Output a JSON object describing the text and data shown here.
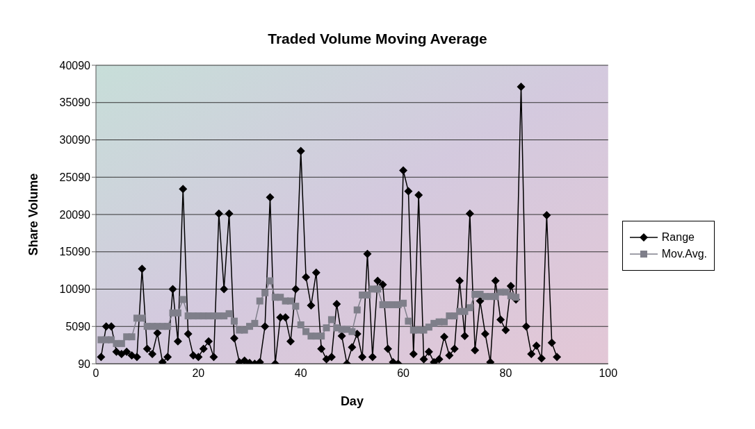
{
  "chart_data": {
    "type": "line",
    "title": "Traded Volume Moving Average",
    "xlabel": "Day",
    "ylabel": "Share Volume",
    "x": [
      1,
      2,
      3,
      4,
      5,
      6,
      7,
      8,
      9,
      10,
      11,
      12,
      13,
      14,
      15,
      16,
      17,
      18,
      19,
      20,
      21,
      22,
      23,
      24,
      25,
      26,
      27,
      28,
      29,
      30,
      31,
      32,
      33,
      34,
      35,
      36,
      37,
      38,
      39,
      40,
      41,
      42,
      43,
      44,
      45,
      46,
      47,
      48,
      49,
      50,
      51,
      52,
      53,
      54,
      55,
      56,
      57,
      58,
      59,
      60,
      61,
      62,
      63,
      64,
      65,
      66,
      67,
      68,
      69,
      70,
      71,
      72,
      73,
      74,
      75,
      76,
      77,
      78,
      79,
      80,
      81,
      82,
      83,
      84,
      85,
      86,
      87,
      88,
      89,
      90
    ],
    "series": [
      {
        "name": "Range",
        "color": "#000000",
        "marker": "diamond",
        "values": [
          1000,
          5100,
          5100,
          1700,
          1400,
          1700,
          1200,
          1000,
          12800,
          2100,
          1400,
          4200,
          300,
          1000,
          10100,
          3100,
          23500,
          4100,
          1200,
          1000,
          2100,
          3100,
          1000,
          20200,
          10100,
          20200,
          3500,
          300,
          500,
          200,
          90,
          300,
          5100,
          22400,
          90,
          6300,
          6300,
          3100,
          10100,
          28600,
          11700,
          7900,
          12300,
          2100,
          700,
          1000,
          8100,
          3800,
          90,
          2300,
          4100,
          1000,
          14800,
          1000,
          11200,
          10700,
          2100,
          300,
          90,
          26000,
          23200,
          1400,
          22700,
          700,
          1700,
          300,
          700,
          3700,
          1200,
          2100,
          11200,
          3800,
          20200,
          1900,
          8500,
          4100,
          300,
          11200,
          6000,
          4600,
          10500,
          8700,
          37200,
          5100,
          1400,
          2500,
          800,
          20000,
          2900,
          1000
        ]
      },
      {
        "name": "Mov.Avg.",
        "color": "#7f7f8a",
        "marker": "square",
        "values": [
          3300,
          3300,
          3300,
          2800,
          2800,
          3700,
          3700,
          6200,
          6200,
          5100,
          5100,
          5100,
          5100,
          5100,
          6900,
          6900,
          8700,
          6500,
          6500,
          6500,
          6500,
          6500,
          6500,
          6500,
          6500,
          6800,
          5800,
          4600,
          4600,
          5100,
          5500,
          8500,
          9600,
          11200,
          9000,
          9000,
          8500,
          8500,
          7800,
          5300,
          4400,
          3800,
          3800,
          3800,
          4900,
          6000,
          4900,
          4700,
          4700,
          4400,
          7300,
          9300,
          9300,
          10100,
          10100,
          8000,
          8000,
          8000,
          8000,
          8200,
          5800,
          4600,
          4600,
          4600,
          5000,
          5500,
          5700,
          5700,
          6500,
          6500,
          7100,
          7100,
          7600,
          9400,
          9400,
          9100,
          9100,
          9100,
          9700,
          9700,
          9200,
          9000,
          null,
          null,
          null,
          null,
          null,
          null,
          null,
          null
        ]
      }
    ],
    "xlim": [
      0,
      100
    ],
    "xticks": [
      0,
      20,
      40,
      60,
      80,
      100
    ],
    "ylim": [
      90,
      40090
    ],
    "yticks": [
      90,
      5090,
      10090,
      15090,
      20090,
      25090,
      30090,
      35090,
      40090
    ],
    "grid": "y",
    "legend": "right",
    "line_style": "solid"
  }
}
